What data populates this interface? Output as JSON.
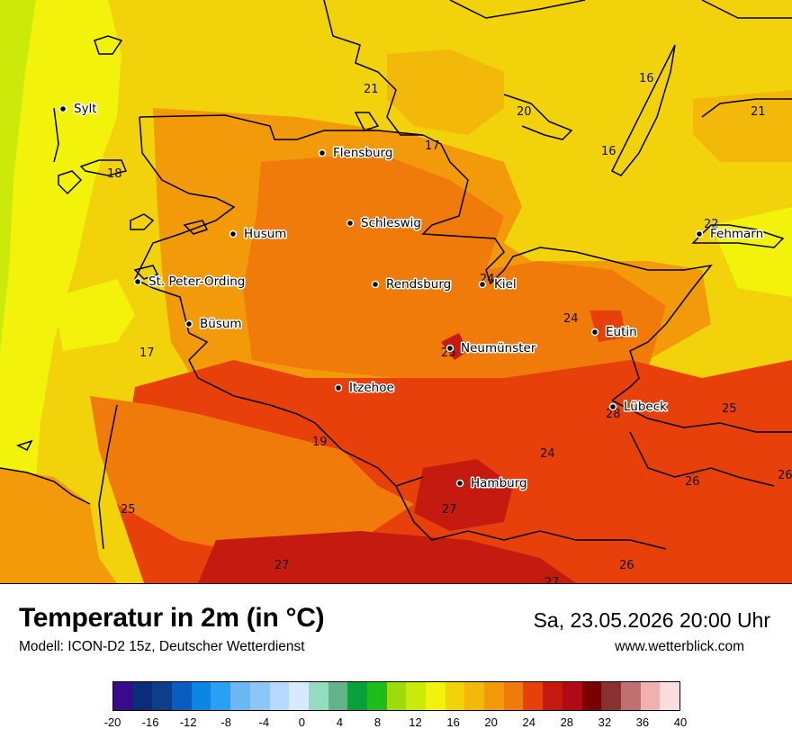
{
  "header": {
    "title": "Temperatur in 2m (in °C)",
    "subtitle": "Modell: ICON-D2 15z, Deutscher Wetterdienst",
    "datetime": "Sa, 23.05.2026 20:00 Uhr",
    "website": "www.wetterblick.com"
  },
  "cities": [
    {
      "id": "sylt",
      "name": "Sylt"
    },
    {
      "id": "flensburg",
      "name": "Flensburg"
    },
    {
      "id": "schleswig",
      "name": "Schleswig"
    },
    {
      "id": "husum",
      "name": "Husum"
    },
    {
      "id": "st-peter-ording",
      "name": "St. Peter-Ording"
    },
    {
      "id": "rendsburg",
      "name": "Rendsburg"
    },
    {
      "id": "kiel",
      "name": "Kiel"
    },
    {
      "id": "buesum",
      "name": "Büsum"
    },
    {
      "id": "neumuenster",
      "name": "Neumünster"
    },
    {
      "id": "eutin",
      "name": "Eutin"
    },
    {
      "id": "itzehoe",
      "name": "Itzehoe"
    },
    {
      "id": "luebeck",
      "name": "Lübeck"
    },
    {
      "id": "hamburg",
      "name": "Hamburg"
    },
    {
      "id": "fehmarn",
      "name": "Fehmarn"
    }
  ],
  "temperature_labels": [
    "21",
    "20",
    "16",
    "21",
    "17",
    "16",
    "18",
    "22",
    "24",
    "24",
    "17",
    "25",
    "25",
    "28",
    "25",
    "19",
    "24",
    "26",
    "26",
    "25",
    "27",
    "27",
    "26",
    "27"
  ],
  "legend": {
    "tick_labels": [
      "-20",
      "-16",
      "-12",
      "-8",
      "-4",
      "0",
      "4",
      "8",
      "12",
      "16",
      "20",
      "24",
      "28",
      "32",
      "36",
      "40"
    ],
    "colors": [
      "#3a0a8c",
      "#0a2d7a",
      "#0c3f8a",
      "#0a5cc0",
      "#0a86e6",
      "#2aa0f5",
      "#6cb8f5",
      "#8cc6f7",
      "#b6d8fa",
      "#d8e9fc",
      "#93dcc0",
      "#62b28a",
      "#0aa13a",
      "#1fbd1a",
      "#9ddc0a",
      "#cbea0a",
      "#f2f20a",
      "#f2d20a",
      "#f2b80a",
      "#f29a0a",
      "#f07a0a",
      "#e8400a",
      "#c41a10",
      "#b00a18",
      "#7a0000",
      "#8a3030",
      "#c07070",
      "#f0b0b0",
      "#fcdcdc"
    ]
  }
}
